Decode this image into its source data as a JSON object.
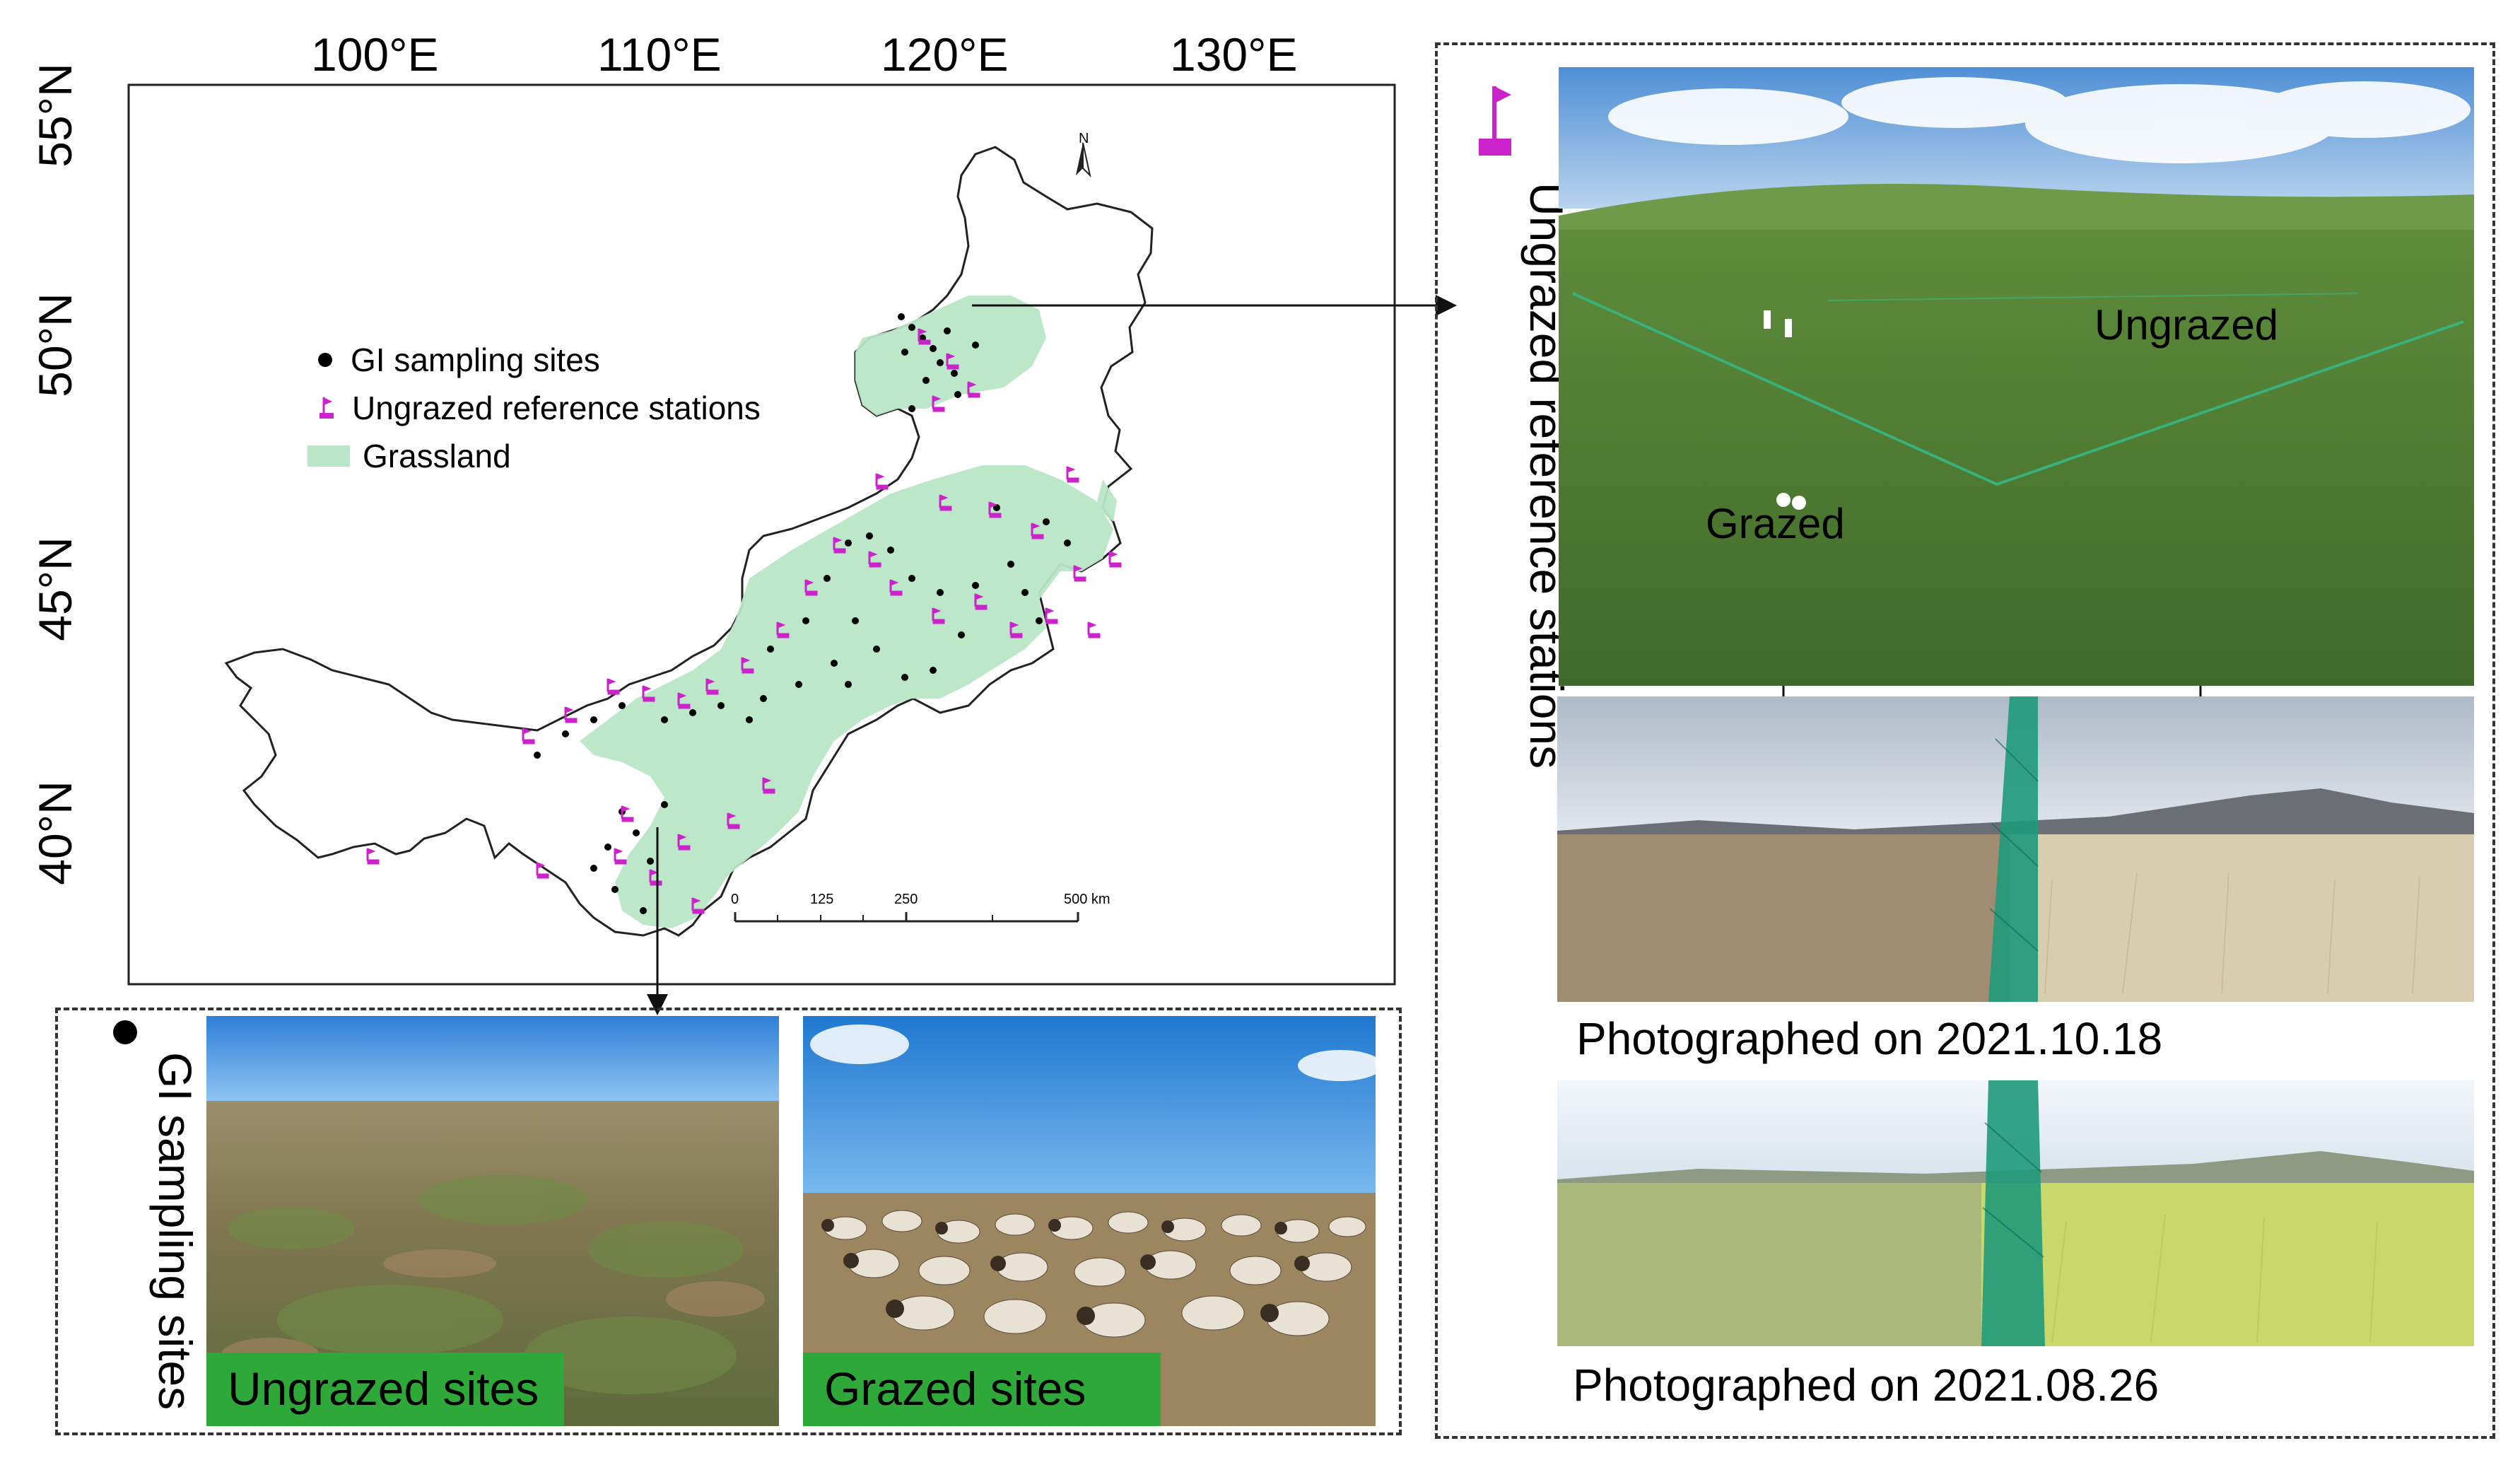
{
  "map": {
    "lon_labels": [
      "100°E",
      "110°E",
      "120°E",
      "130°E"
    ],
    "lat_labels": [
      "55°N",
      "50°N",
      "45°N",
      "40°N"
    ],
    "north_label": "N",
    "legend": {
      "sampling": "GI sampling sites",
      "stations": "Ungrazed reference stations",
      "grassland": "Grassland"
    },
    "scale": {
      "ticks": [
        "0",
        "125",
        "250",
        "500 km"
      ]
    },
    "colors": {
      "grassland": "#b9e6c6",
      "station": "#cc22cc",
      "site": "#000000",
      "outline": "#222222"
    }
  },
  "gi_panel": {
    "title": "GI sampling sites",
    "ungrazed_label": "Ungrazed sites",
    "grazed_label": "Grazed sites"
  },
  "station_panel": {
    "title": "Ungrazed reference stations",
    "aerial_ungrazed": "Ungrazed",
    "aerial_grazed": "Grazed",
    "caption_1": "Photographed on 2021.10.18",
    "caption_2": "Photographed on 2021.08.26"
  }
}
